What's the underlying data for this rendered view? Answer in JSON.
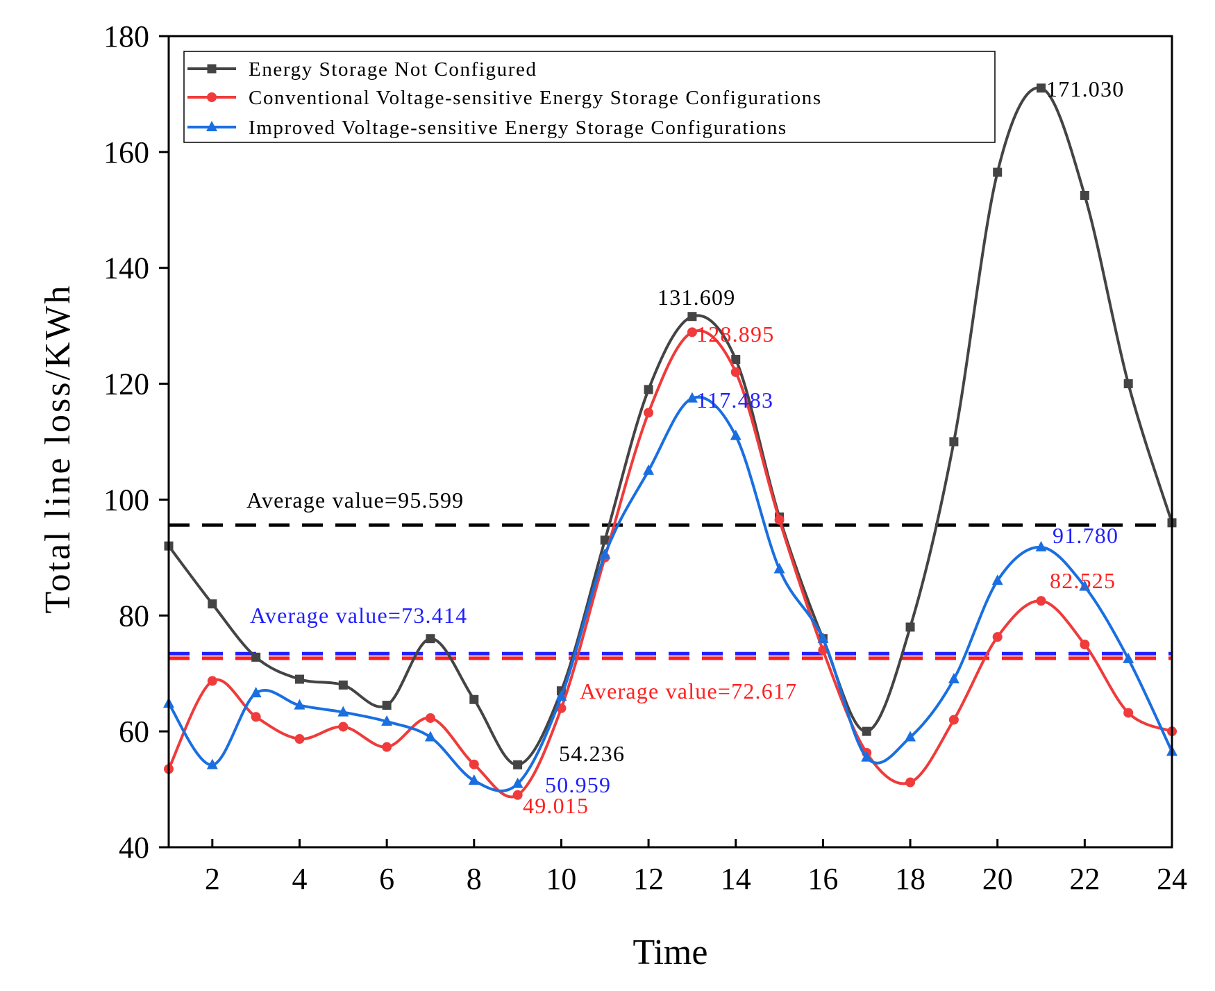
{
  "chart_data": {
    "type": "line",
    "xlabel": "Time",
    "ylabel": "Total line loss/KWh",
    "xlim": [
      1,
      24
    ],
    "ylim": [
      40,
      180
    ],
    "xticks": [
      2,
      4,
      6,
      8,
      10,
      12,
      14,
      16,
      18,
      20,
      22,
      24
    ],
    "yticks": [
      40,
      60,
      80,
      100,
      120,
      140,
      160,
      180
    ],
    "x": [
      1,
      2,
      3,
      4,
      5,
      6,
      7,
      8,
      9,
      10,
      11,
      12,
      13,
      14,
      15,
      16,
      17,
      18,
      19,
      20,
      21,
      22,
      23,
      24
    ],
    "series": [
      {
        "name": "Energy Storage Not Configured",
        "color": "#444444",
        "marker": "square",
        "values": [
          92,
          82,
          72.8,
          69,
          68,
          64.5,
          76,
          65.5,
          54.236,
          67,
          93,
          119,
          131.609,
          124.2,
          97,
          76,
          60,
          78,
          110,
          156.5,
          171.03,
          152.5,
          120,
          96
        ]
      },
      {
        "name": "Conventional Voltage-sensitive Energy Storage Configurations",
        "color": "#ef3b3b",
        "marker": "circle",
        "values": [
          53.5,
          68.7,
          62.5,
          58.7,
          60.8,
          57.3,
          62.3,
          54.3,
          49.015,
          64,
          90,
          115,
          128.895,
          122,
          96.5,
          74,
          56.3,
          51.2,
          62,
          76.3,
          82.525,
          75,
          63.2,
          60
        ]
      },
      {
        "name": "Improved Voltage-sensitive Energy Storage Configurations",
        "color": "#1a6fe0",
        "marker": "triangle",
        "values": [
          64.8,
          54.2,
          66.6,
          64.5,
          63.3,
          61.7,
          59,
          51.5,
          50.959,
          66,
          90.5,
          105,
          117.483,
          111,
          88,
          76,
          55.5,
          59,
          69,
          86,
          91.78,
          85,
          72.5,
          56.5
        ]
      }
    ],
    "reference_lines": [
      {
        "label": "Average value=95.599",
        "value": 95.599,
        "color": "#000000"
      },
      {
        "label": "Average value=73.414",
        "value": 73.414,
        "color": "#1f1fff"
      },
      {
        "label": "Average value=72.617",
        "value": 72.617,
        "color": "#ff2020"
      }
    ],
    "annotations": [
      {
        "text": "171.030",
        "x": 21,
        "y": 171.03,
        "color": "#000000"
      },
      {
        "text": "131.609",
        "x": 13,
        "y": 131.609,
        "color": "#000000"
      },
      {
        "text": "128.895",
        "x": 13,
        "y": 128.895,
        "color": "#ff2020"
      },
      {
        "text": "117.483",
        "x": 13,
        "y": 117.483,
        "color": "#1f1fff"
      },
      {
        "text": "54.236",
        "x": 9,
        "y": 54.236,
        "color": "#000000"
      },
      {
        "text": "50.959",
        "x": 9,
        "y": 50.959,
        "color": "#1f1fff"
      },
      {
        "text": "49.015",
        "x": 9,
        "y": 49.015,
        "color": "#ff2020"
      },
      {
        "text": "91.780",
        "x": 21,
        "y": 91.78,
        "color": "#1f1fff"
      },
      {
        "text": "82.525",
        "x": 21,
        "y": 82.525,
        "color": "#ff2020"
      }
    ],
    "legend_position": "top-left"
  }
}
